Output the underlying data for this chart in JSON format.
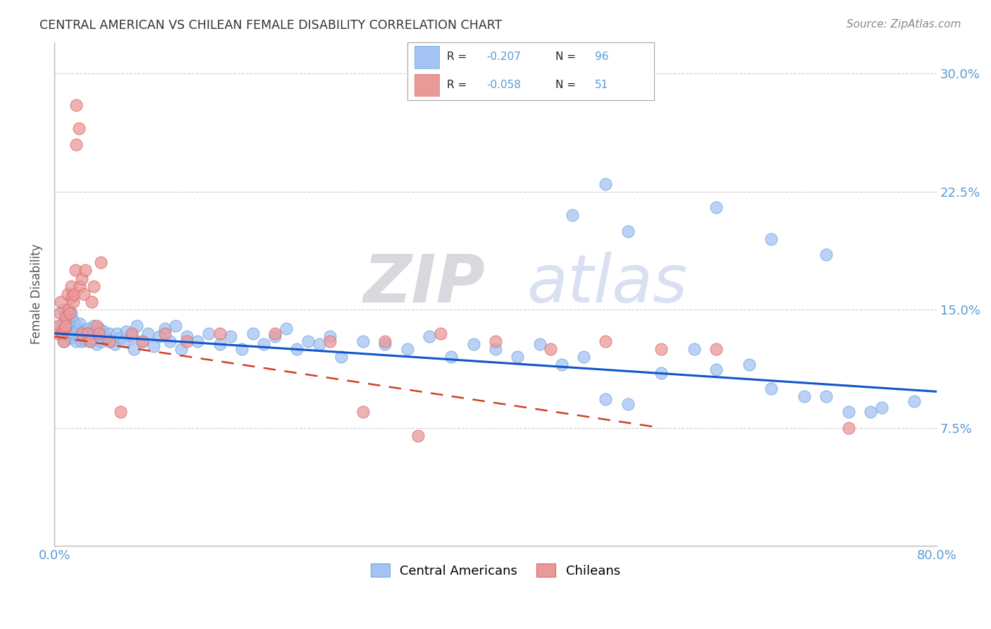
{
  "title": "CENTRAL AMERICAN VS CHILEAN FEMALE DISABILITY CORRELATION CHART",
  "source": "Source: ZipAtlas.com",
  "ylabel": "Female Disability",
  "xlim": [
    0.0,
    0.8
  ],
  "ylim": [
    0.0,
    0.32
  ],
  "ytick_positions": [
    0.075,
    0.15,
    0.225,
    0.3
  ],
  "ytick_labels": [
    "7.5%",
    "15.0%",
    "22.5%",
    "30.0%"
  ],
  "legend_labels": [
    "Central Americans",
    "Chileans"
  ],
  "blue_color": "#a4c2f4",
  "pink_color": "#ea9999",
  "blue_marker_edge": "#6fa8dc",
  "pink_marker_edge": "#e06666",
  "blue_line_color": "#1155cc",
  "pink_line_color": "#cc4125",
  "watermark_zip": "ZIP",
  "watermark_atlas": "atlas",
  "watermark_zip_color": "#d0d0d8",
  "watermark_atlas_color": "#c5cfe8",
  "ca_x": [
    0.005,
    0.007,
    0.008,
    0.009,
    0.01,
    0.01,
    0.012,
    0.013,
    0.015,
    0.015,
    0.016,
    0.017,
    0.018,
    0.02,
    0.02,
    0.021,
    0.022,
    0.023,
    0.025,
    0.025,
    0.027,
    0.028,
    0.03,
    0.031,
    0.033,
    0.035,
    0.036,
    0.038,
    0.04,
    0.041,
    0.043,
    0.045,
    0.047,
    0.05,
    0.052,
    0.055,
    0.057,
    0.06,
    0.063,
    0.065,
    0.07,
    0.072,
    0.075,
    0.08,
    0.085,
    0.09,
    0.095,
    0.1,
    0.105,
    0.11,
    0.115,
    0.12,
    0.13,
    0.14,
    0.15,
    0.16,
    0.17,
    0.18,
    0.19,
    0.2,
    0.21,
    0.22,
    0.23,
    0.24,
    0.25,
    0.26,
    0.28,
    0.3,
    0.32,
    0.34,
    0.36,
    0.38,
    0.4,
    0.42,
    0.44,
    0.46,
    0.48,
    0.5,
    0.52,
    0.55,
    0.58,
    0.6,
    0.63,
    0.65,
    0.68,
    0.7,
    0.72,
    0.74,
    0.5,
    0.47,
    0.52,
    0.6,
    0.65,
    0.7,
    0.75,
    0.78
  ],
  "ca_y": [
    0.14,
    0.135,
    0.15,
    0.13,
    0.145,
    0.138,
    0.142,
    0.136,
    0.148,
    0.132,
    0.138,
    0.143,
    0.135,
    0.14,
    0.13,
    0.137,
    0.133,
    0.141,
    0.135,
    0.13,
    0.136,
    0.131,
    0.138,
    0.134,
    0.13,
    0.135,
    0.14,
    0.128,
    0.133,
    0.138,
    0.13,
    0.136,
    0.132,
    0.135,
    0.13,
    0.128,
    0.135,
    0.132,
    0.13,
    0.136,
    0.133,
    0.125,
    0.14,
    0.13,
    0.135,
    0.127,
    0.133,
    0.138,
    0.13,
    0.14,
    0.125,
    0.133,
    0.13,
    0.135,
    0.128,
    0.133,
    0.125,
    0.135,
    0.128,
    0.133,
    0.138,
    0.125,
    0.13,
    0.128,
    0.133,
    0.12,
    0.13,
    0.128,
    0.125,
    0.133,
    0.12,
    0.128,
    0.125,
    0.12,
    0.128,
    0.115,
    0.12,
    0.093,
    0.09,
    0.11,
    0.125,
    0.112,
    0.115,
    0.1,
    0.095,
    0.095,
    0.085,
    0.085,
    0.23,
    0.21,
    0.2,
    0.215,
    0.195,
    0.185,
    0.088,
    0.092
  ],
  "ch_x": [
    0.003,
    0.004,
    0.005,
    0.006,
    0.007,
    0.008,
    0.009,
    0.01,
    0.01,
    0.012,
    0.013,
    0.014,
    0.015,
    0.016,
    0.017,
    0.018,
    0.019,
    0.02,
    0.02,
    0.022,
    0.023,
    0.025,
    0.025,
    0.027,
    0.028,
    0.03,
    0.032,
    0.034,
    0.036,
    0.038,
    0.04,
    0.042,
    0.05,
    0.06,
    0.07,
    0.08,
    0.1,
    0.12,
    0.15,
    0.2,
    0.25,
    0.3,
    0.35,
    0.4,
    0.45,
    0.5,
    0.55,
    0.6,
    0.72,
    0.28,
    0.33
  ],
  "ch_y": [
    0.135,
    0.14,
    0.148,
    0.155,
    0.135,
    0.13,
    0.138,
    0.145,
    0.14,
    0.16,
    0.15,
    0.148,
    0.165,
    0.158,
    0.155,
    0.16,
    0.175,
    0.28,
    0.255,
    0.265,
    0.165,
    0.135,
    0.17,
    0.16,
    0.175,
    0.135,
    0.13,
    0.155,
    0.165,
    0.14,
    0.135,
    0.18,
    0.13,
    0.085,
    0.135,
    0.13,
    0.135,
    0.13,
    0.135,
    0.135,
    0.13,
    0.13,
    0.135,
    0.13,
    0.125,
    0.13,
    0.125,
    0.125,
    0.075,
    0.085,
    0.07
  ],
  "ca_line_x": [
    0.0,
    0.8
  ],
  "ca_line_y": [
    0.135,
    0.098
  ],
  "ch_line_x": [
    0.0,
    0.55
  ],
  "ch_line_y": [
    0.133,
    0.075
  ]
}
